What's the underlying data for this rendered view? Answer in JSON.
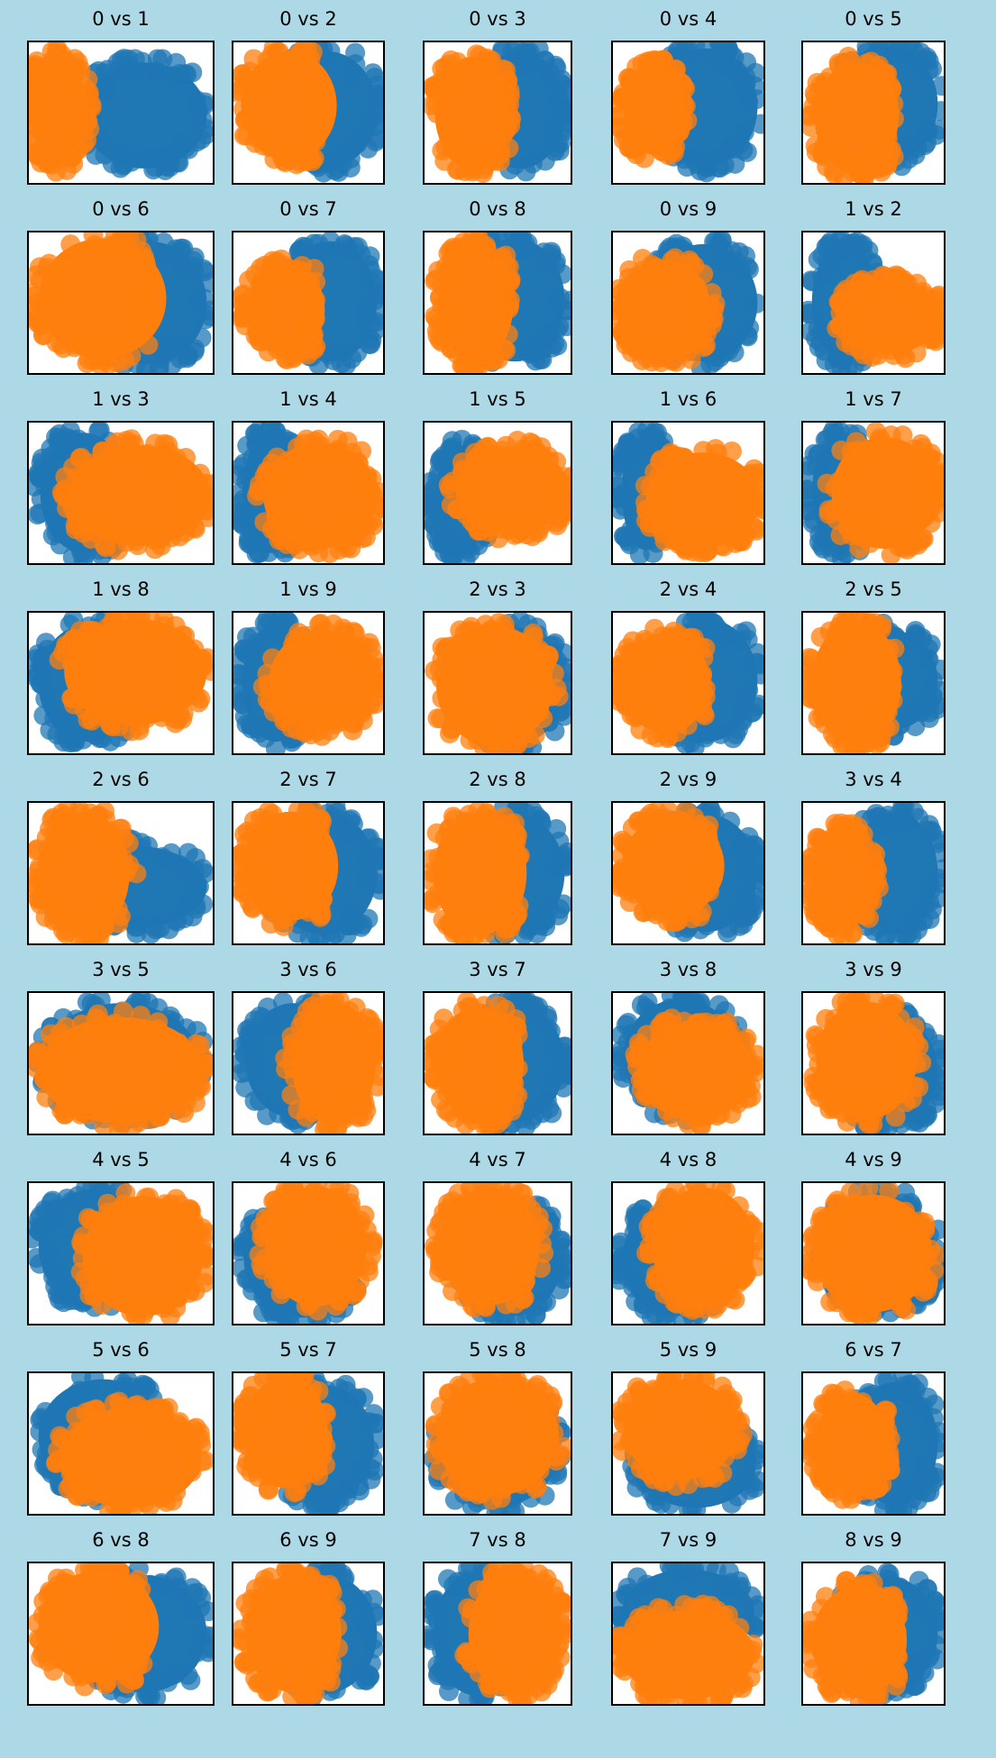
{
  "colors": {
    "background": "#add8e6",
    "class_a": "#1f77b4",
    "class_b": "#ff7f0e",
    "panel": "#ffffff"
  },
  "chart_data": {
    "type": "scatter",
    "description_grid": {
      "rows": 9,
      "cols": 5
    },
    "series_colors": [
      "#1f77b4",
      "#ff7f0e"
    ],
    "axes_ticks": false,
    "panels": [
      {
        "title": "0 vs 1",
        "a": [
          0.63,
          0.52,
          0.37,
          0.42
        ],
        "b": [
          0.16,
          0.48,
          0.18,
          0.44
        ],
        "split": 0.35
      },
      {
        "title": "0 vs 2",
        "a": [
          0.62,
          0.48,
          0.38,
          0.46
        ],
        "b": [
          0.37,
          0.45,
          0.36,
          0.43
        ],
        "split": 0.55
      },
      {
        "title": "0 vs 3",
        "a": [
          0.66,
          0.48,
          0.34,
          0.46
        ],
        "b": [
          0.33,
          0.5,
          0.3,
          0.44
        ],
        "split": 0.6
      },
      {
        "title": "0 vs 4",
        "a": [
          0.62,
          0.46,
          0.38,
          0.46
        ],
        "b": [
          0.27,
          0.48,
          0.24,
          0.36
        ],
        "split": 0.5
      },
      {
        "title": "0 vs 5",
        "a": [
          0.6,
          0.44,
          0.4,
          0.46
        ],
        "b": [
          0.38,
          0.54,
          0.34,
          0.44
        ],
        "split": 0.65
      },
      {
        "title": "0 vs 6",
        "a": [
          0.65,
          0.5,
          0.35,
          0.48
        ],
        "b": [
          0.4,
          0.47,
          0.38,
          0.47
        ],
        "split": 0.65
      },
      {
        "title": "0 vs 7",
        "a": [
          0.65,
          0.49,
          0.35,
          0.47
        ],
        "b": [
          0.35,
          0.55,
          0.3,
          0.37
        ],
        "split": 0.55
      },
      {
        "title": "0 vs 8",
        "a": [
          0.62,
          0.48,
          0.38,
          0.48
        ],
        "b": [
          0.35,
          0.5,
          0.3,
          0.46
        ],
        "split": 0.6
      },
      {
        "title": "0 vs 9",
        "a": [
          0.6,
          0.5,
          0.4,
          0.46
        ],
        "b": [
          0.35,
          0.55,
          0.34,
          0.4
        ],
        "split": 0.68
      },
      {
        "title": "1 vs 2",
        "a": [
          0.3,
          0.5,
          0.28,
          0.46
        ],
        "b": [
          0.62,
          0.6,
          0.4,
          0.3
        ],
        "split": 2
      },
      {
        "title": "1 vs 3",
        "a": [
          0.3,
          0.5,
          0.27,
          0.47
        ],
        "b": [
          0.6,
          0.52,
          0.42,
          0.4
        ],
        "split": 2
      },
      {
        "title": "1 vs 4",
        "a": [
          0.25,
          0.5,
          0.23,
          0.47
        ],
        "b": [
          0.58,
          0.52,
          0.42,
          0.42
        ],
        "split": 2
      },
      {
        "title": "1 vs 5",
        "a": [
          0.25,
          0.55,
          0.22,
          0.43
        ],
        "b": [
          0.6,
          0.48,
          0.43,
          0.35
        ],
        "split": 2
      },
      {
        "title": "1 vs 6",
        "a": [
          0.22,
          0.5,
          0.2,
          0.45
        ],
        "b": [
          0.6,
          0.55,
          0.42,
          0.38
        ],
        "split": 2
      },
      {
        "title": "1 vs 7",
        "a": [
          0.28,
          0.5,
          0.26,
          0.46
        ],
        "b": [
          0.58,
          0.5,
          0.42,
          0.44
        ],
        "split": 2
      },
      {
        "title": "1 vs 8",
        "a": [
          0.32,
          0.5,
          0.3,
          0.46
        ],
        "b": [
          0.58,
          0.42,
          0.42,
          0.42
        ],
        "split": 2
      },
      {
        "title": "1 vs 9",
        "a": [
          0.28,
          0.5,
          0.26,
          0.46
        ],
        "b": [
          0.6,
          0.48,
          0.4,
          0.4
        ],
        "split": 2
      },
      {
        "title": "2 vs 3",
        "a": [
          0.62,
          0.52,
          0.38,
          0.46
        ],
        "b": [
          0.48,
          0.52,
          0.44,
          0.47
        ],
        "split": 2
      },
      {
        "title": "2 vs 4",
        "a": [
          0.62,
          0.48,
          0.38,
          0.48
        ],
        "b": [
          0.35,
          0.5,
          0.33,
          0.4
        ],
        "split": 0.62
      },
      {
        "title": "2 vs 5",
        "a": [
          0.62,
          0.48,
          0.38,
          0.4
        ],
        "b": [
          0.38,
          0.5,
          0.36,
          0.48
        ],
        "split": 0.65
      },
      {
        "title": "2 vs 6",
        "a": [
          0.55,
          0.6,
          0.45,
          0.34
        ],
        "b": [
          0.3,
          0.5,
          0.28,
          0.48
        ],
        "split": 0.68
      },
      {
        "title": "2 vs 7",
        "a": [
          0.6,
          0.5,
          0.4,
          0.48
        ],
        "b": [
          0.38,
          0.45,
          0.36,
          0.43
        ],
        "split": 0.6
      },
      {
        "title": "2 vs 8",
        "a": [
          0.6,
          0.5,
          0.4,
          0.47
        ],
        "b": [
          0.38,
          0.5,
          0.36,
          0.48
        ],
        "split": 0.66
      },
      {
        "title": "2 vs 9",
        "a": [
          0.62,
          0.5,
          0.38,
          0.46
        ],
        "b": [
          0.4,
          0.45,
          0.38,
          0.4
        ],
        "split": 0.65
      },
      {
        "title": "3 vs 4",
        "a": [
          0.65,
          0.5,
          0.35,
          0.48
        ],
        "b": [
          0.28,
          0.54,
          0.26,
          0.4
        ],
        "split": 0.58
      },
      {
        "title": "3 vs 5",
        "a": [
          0.5,
          0.48,
          0.46,
          0.45
        ],
        "b": [
          0.5,
          0.55,
          0.48,
          0.42
        ],
        "split": 2
      },
      {
        "title": "3 vs 6",
        "a": [
          0.4,
          0.48,
          0.36,
          0.45
        ],
        "b": [
          0.67,
          0.5,
          0.32,
          0.48
        ],
        "split": 2
      },
      {
        "title": "3 vs 7",
        "a": [
          0.62,
          0.5,
          0.38,
          0.46
        ],
        "b": [
          0.38,
          0.5,
          0.34,
          0.45
        ],
        "split": 0.64
      },
      {
        "title": "3 vs 8",
        "a": [
          0.45,
          0.45,
          0.42,
          0.45
        ],
        "b": [
          0.55,
          0.55,
          0.42,
          0.4
        ],
        "split": 2
      },
      {
        "title": "3 vs 9",
        "a": [
          0.6,
          0.55,
          0.4,
          0.44
        ],
        "b": [
          0.45,
          0.48,
          0.4,
          0.46
        ],
        "split": 2
      },
      {
        "title": "4 vs 5",
        "a": [
          0.35,
          0.45,
          0.33,
          0.45
        ],
        "b": [
          0.62,
          0.52,
          0.36,
          0.47
        ],
        "split": 2
      },
      {
        "title": "4 vs 6",
        "a": [
          0.45,
          0.55,
          0.42,
          0.45
        ],
        "b": [
          0.55,
          0.45,
          0.38,
          0.47
        ],
        "split": 2
      },
      {
        "title": "4 vs 7",
        "a": [
          0.6,
          0.55,
          0.38,
          0.44
        ],
        "b": [
          0.45,
          0.45,
          0.38,
          0.46
        ],
        "split": 2
      },
      {
        "title": "4 vs 8",
        "a": [
          0.4,
          0.55,
          0.38,
          0.44
        ],
        "b": [
          0.6,
          0.45,
          0.38,
          0.46
        ],
        "split": 2
      },
      {
        "title": "4 vs 9",
        "a": [
          0.55,
          0.5,
          0.44,
          0.46
        ],
        "b": [
          0.5,
          0.5,
          0.46,
          0.46
        ],
        "split": 2
      },
      {
        "title": "5 vs 6",
        "a": [
          0.4,
          0.45,
          0.38,
          0.45
        ],
        "b": [
          0.55,
          0.6,
          0.42,
          0.4
        ],
        "split": 2
      },
      {
        "title": "5 vs 7",
        "a": [
          0.6,
          0.5,
          0.38,
          0.46
        ],
        "b": [
          0.35,
          0.42,
          0.32,
          0.44
        ],
        "split": 0.62
      },
      {
        "title": "5 vs 8",
        "a": [
          0.5,
          0.55,
          0.46,
          0.44
        ],
        "b": [
          0.5,
          0.45,
          0.46,
          0.46
        ],
        "split": 2
      },
      {
        "title": "5 vs 9",
        "a": [
          0.55,
          0.65,
          0.44,
          0.35
        ],
        "b": [
          0.45,
          0.4,
          0.42,
          0.4
        ],
        "split": 2
      },
      {
        "title": "6 vs 7",
        "a": [
          0.65,
          0.5,
          0.35,
          0.48
        ],
        "b": [
          0.35,
          0.5,
          0.3,
          0.4
        ],
        "split": 0.62
      },
      {
        "title": "6 vs 8",
        "a": [
          0.62,
          0.5,
          0.38,
          0.46
        ],
        "b": [
          0.38,
          0.45,
          0.36,
          0.44
        ],
        "split": 0.62
      },
      {
        "title": "6 vs 9",
        "a": [
          0.6,
          0.5,
          0.4,
          0.47
        ],
        "b": [
          0.4,
          0.5,
          0.36,
          0.46
        ],
        "split": 0.7
      },
      {
        "title": "7 vs 8",
        "a": [
          0.35,
          0.5,
          0.33,
          0.48
        ],
        "b": [
          0.62,
          0.5,
          0.36,
          0.48
        ],
        "split": 2
      },
      {
        "title": "7 vs 9",
        "a": [
          0.5,
          0.35,
          0.48,
          0.35
        ],
        "b": [
          0.5,
          0.65,
          0.48,
          0.36
        ],
        "split": 2
      },
      {
        "title": "8 vs 9",
        "a": [
          0.6,
          0.5,
          0.4,
          0.45
        ],
        "b": [
          0.4,
          0.55,
          0.38,
          0.43
        ],
        "split": 0.68
      }
    ]
  }
}
